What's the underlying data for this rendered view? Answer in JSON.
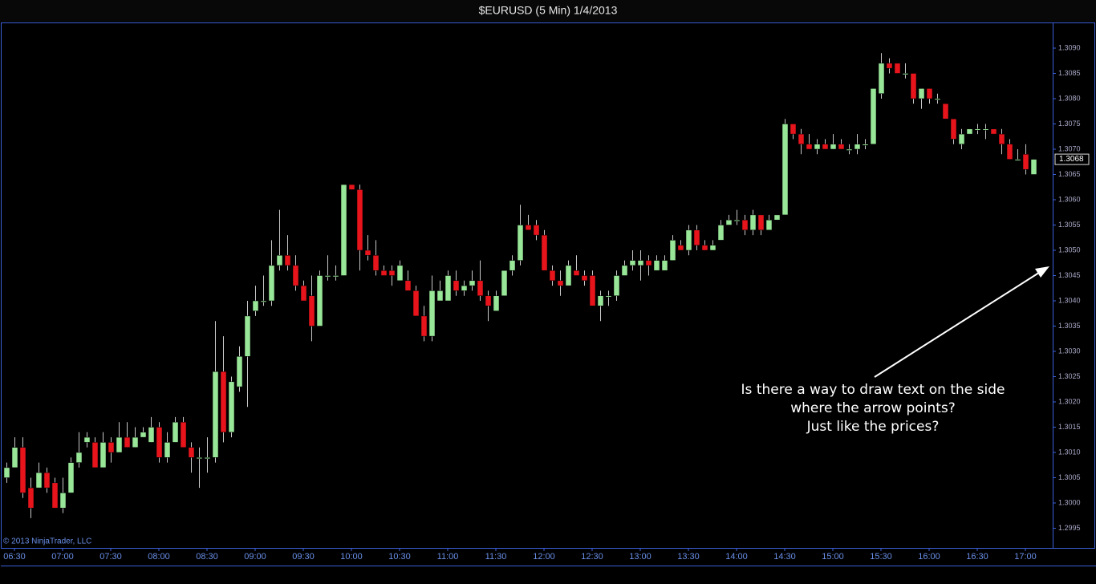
{
  "chart_data": {
    "type": "candlestick",
    "title": "$EURUSD (5 Min)  1/4/2013",
    "copyright": "© 2013 NinjaTrader, LLC",
    "annotation": [
      "Is there a way to draw text on the side",
      "where the arrow points?",
      "Just like the prices?"
    ],
    "up_color": "#98e698",
    "down_color": "#e8141c",
    "wick_color": "#c8c8c8",
    "last_price": 1.3068,
    "ylim": [
      1.299159,
      1.309476
    ],
    "yticks": [
      {
        "value": 1.2995,
        "label": "1.2995"
      },
      {
        "value": 1.3,
        "label": "1.3000"
      },
      {
        "value": 1.3005,
        "label": "1.3005"
      },
      {
        "value": 1.301,
        "label": "1.3010"
      },
      {
        "value": 1.3015,
        "label": "1.3015"
      },
      {
        "value": 1.302,
        "label": "1.3020"
      },
      {
        "value": 1.3025,
        "label": "1.3025"
      },
      {
        "value": 1.303,
        "label": "1.3030"
      },
      {
        "value": 1.3035,
        "label": "1.3035"
      },
      {
        "value": 1.304,
        "label": "1.3040"
      },
      {
        "value": 1.3045,
        "label": "1.3045"
      },
      {
        "value": 1.305,
        "label": "1.3050"
      },
      {
        "value": 1.3055,
        "label": "1.3055"
      },
      {
        "value": 1.306,
        "label": "1.3060"
      },
      {
        "value": 1.3065,
        "label": "1.3065"
      },
      {
        "value": 1.307,
        "label": "1.3070"
      },
      {
        "value": 1.3075,
        "label": "1.3075"
      },
      {
        "value": 1.308,
        "label": "1.3080"
      },
      {
        "value": 1.3085,
        "label": "1.3085"
      },
      {
        "value": 1.309,
        "label": "1.3090"
      }
    ],
    "x": [
      "06:25",
      "06:30",
      "06:35",
      "06:40",
      "06:45",
      "06:50",
      "06:55",
      "07:00",
      "07:05",
      "07:10",
      "07:15",
      "07:20",
      "07:25",
      "07:30",
      "07:35",
      "07:40",
      "07:45",
      "07:50",
      "07:55",
      "08:00",
      "08:05",
      "08:10",
      "08:15",
      "08:20",
      "08:25",
      "08:30",
      "08:35",
      "08:40",
      "08:45",
      "08:50",
      "08:55",
      "09:00",
      "09:05",
      "09:10",
      "09:15",
      "09:20",
      "09:25",
      "09:30",
      "09:35",
      "09:40",
      "09:45",
      "09:50",
      "09:55",
      "10:00",
      "10:05",
      "10:10",
      "10:15",
      "10:20",
      "10:25",
      "10:30",
      "10:35",
      "10:40",
      "10:45",
      "10:50",
      "10:55",
      "11:00",
      "11:05",
      "11:10",
      "11:15",
      "11:20",
      "11:25",
      "11:30",
      "11:35",
      "11:40",
      "11:45",
      "11:50",
      "11:55",
      "12:00",
      "12:05",
      "12:10",
      "12:15",
      "12:20",
      "12:25",
      "12:30",
      "12:35",
      "12:40",
      "12:45",
      "12:50",
      "12:55",
      "13:00",
      "13:05",
      "13:10",
      "13:15",
      "13:20",
      "13:25",
      "13:30",
      "13:35",
      "13:40",
      "13:45",
      "13:50",
      "13:55",
      "14:00",
      "14:05",
      "14:10",
      "14:15",
      "14:20",
      "14:25",
      "14:30",
      "14:35",
      "14:40",
      "14:45",
      "14:50",
      "14:55",
      "15:00",
      "15:05",
      "15:10",
      "15:15",
      "15:20",
      "15:25",
      "15:30",
      "15:35",
      "15:40",
      "15:45",
      "15:50",
      "15:55",
      "16:00",
      "16:05",
      "16:10",
      "16:15",
      "16:20",
      "16:25",
      "16:30",
      "16:35",
      "16:40",
      "16:45",
      "16:50",
      "16:55",
      "17:00",
      "17:05"
    ],
    "open": [
      1.3005,
      1.3007,
      1.3011,
      1.3003,
      1.3003,
      1.3006,
      1.3004,
      1.2999,
      1.3002,
      1.3008,
      1.3012,
      1.3012,
      1.3007,
      1.3012,
      1.301,
      1.3013,
      1.3011,
      1.3013,
      1.3012,
      1.3015,
      1.3009,
      1.3012,
      1.3016,
      1.3011,
      1.3009,
      1.3009,
      1.3009,
      1.3026,
      1.3014,
      1.3023,
      1.3029,
      1.3038,
      1.304,
      1.304,
      1.3047,
      1.3049,
      1.3047,
      1.3043,
      1.3041,
      1.3035,
      1.3045,
      1.3045,
      1.3045,
      1.3063,
      1.3062,
      1.305,
      1.3049,
      1.3046,
      1.3046,
      1.3044,
      1.3044,
      1.3042,
      1.3037,
      1.3033,
      1.304,
      1.304,
      1.3044,
      1.3042,
      1.3043,
      1.3044,
      1.3041,
      1.3038,
      1.3041,
      1.3046,
      1.3048,
      1.3055,
      1.3055,
      1.3053,
      1.3046,
      1.3044,
      1.3043,
      1.3046,
      1.3045,
      1.3045,
      1.3039,
      1.3041,
      1.3041,
      1.3045,
      1.3047,
      1.3047,
      1.3048,
      1.3046,
      1.3046,
      1.3048,
      1.3051,
      1.305,
      1.3054,
      1.3051,
      1.305,
      1.3052,
      1.3055,
      1.3056,
      1.3056,
      1.3054,
      1.3057,
      1.3054,
      1.3056,
      1.3057,
      1.3075,
      1.3073,
      1.3071,
      1.307,
      1.3071,
      1.307,
      1.3071,
      1.307,
      1.307,
      1.3071,
      1.3071,
      1.3081,
      1.3087,
      1.3087,
      1.3085,
      1.3085,
      1.308,
      1.3082,
      1.308,
      1.3079,
      1.3076,
      1.3071,
      1.3073,
      1.3074,
      1.3074,
      1.3074,
      1.3073,
      1.3071,
      1.3068,
      1.3069,
      1.3065
    ],
    "high": [
      1.3008,
      1.3013,
      1.3013,
      1.3005,
      1.3008,
      1.3007,
      1.3005,
      1.3005,
      1.3009,
      1.3014,
      1.3014,
      1.3013,
      1.3014,
      1.3013,
      1.3016,
      1.3016,
      1.3015,
      1.3015,
      1.3017,
      1.3016,
      1.3014,
      1.3017,
      1.3017,
      1.3012,
      1.3011,
      1.3013,
      1.3036,
      1.3033,
      1.3025,
      1.3031,
      1.304,
      1.3043,
      1.3045,
      1.3052,
      1.3058,
      1.3053,
      1.3049,
      1.3044,
      1.3045,
      1.3046,
      1.3049,
      1.3047,
      1.3063,
      1.3063,
      1.3063,
      1.3053,
      1.3052,
      1.3047,
      1.3047,
      1.3048,
      1.3046,
      1.3043,
      1.3039,
      1.3045,
      1.3044,
      1.3046,
      1.3046,
      1.3044,
      1.3046,
      1.3048,
      1.3042,
      1.3042,
      1.3046,
      1.3049,
      1.3059,
      1.3057,
      1.3056,
      1.3054,
      1.3047,
      1.3046,
      1.3048,
      1.3049,
      1.3046,
      1.3046,
      1.3042,
      1.3042,
      1.3046,
      1.3048,
      1.305,
      1.305,
      1.3049,
      1.3049,
      1.3049,
      1.3053,
      1.3052,
      1.3055,
      1.3055,
      1.3052,
      1.3052,
      1.3056,
      1.3057,
      1.3058,
      1.3057,
      1.3058,
      1.3057,
      1.3057,
      1.3057,
      1.3076,
      1.3075,
      1.3074,
      1.3073,
      1.3072,
      1.3072,
      1.3073,
      1.3072,
      1.3071,
      1.3073,
      1.3072,
      1.3082,
      1.3089,
      1.3088,
      1.3087,
      1.3087,
      1.3085,
      1.3082,
      1.3082,
      1.3081,
      1.3079,
      1.3076,
      1.3074,
      1.3074,
      1.3075,
      1.3075,
      1.3074,
      1.3074,
      1.3072,
      1.307,
      1.3071,
      1.3068
    ],
    "low": [
      1.3004,
      1.3007,
      1.3001,
      1.2997,
      1.3003,
      1.3002,
      1.2999,
      1.2998,
      1.3002,
      1.3007,
      1.3011,
      1.3007,
      1.3007,
      1.3008,
      1.301,
      1.3011,
      1.3011,
      1.3013,
      1.3012,
      1.3008,
      1.3008,
      1.3012,
      1.3011,
      1.3006,
      1.3003,
      1.3006,
      1.3008,
      1.3012,
      1.3013,
      1.3022,
      1.3019,
      1.3037,
      1.3039,
      1.3039,
      1.3046,
      1.3046,
      1.3042,
      1.304,
      1.3032,
      1.3035,
      1.3044,
      1.3044,
      1.3045,
      1.3062,
      1.3046,
      1.3048,
      1.3045,
      1.3045,
      1.3043,
      1.3044,
      1.3042,
      1.3037,
      1.3032,
      1.3032,
      1.304,
      1.304,
      1.3041,
      1.3041,
      1.3042,
      1.304,
      1.3036,
      1.3038,
      1.3041,
      1.3045,
      1.3047,
      1.3054,
      1.3052,
      1.3046,
      1.3043,
      1.3041,
      1.3043,
      1.3045,
      1.3043,
      1.3039,
      1.3036,
      1.3039,
      1.304,
      1.3045,
      1.3046,
      1.3044,
      1.3045,
      1.3046,
      1.3046,
      1.3048,
      1.305,
      1.3049,
      1.305,
      1.305,
      1.305,
      1.3052,
      1.3055,
      1.3055,
      1.3053,
      1.3053,
      1.3053,
      1.3054,
      1.3056,
      1.3057,
      1.3072,
      1.3069,
      1.307,
      1.3069,
      1.307,
      1.307,
      1.307,
      1.3069,
      1.3069,
      1.307,
      1.3071,
      1.308,
      1.3085,
      1.3085,
      1.3084,
      1.3079,
      1.3078,
      1.3079,
      1.3079,
      1.3076,
      1.3071,
      1.307,
      1.3073,
      1.3073,
      1.3072,
      1.3073,
      1.3069,
      1.3068,
      1.3068,
      1.3065,
      1.3065
    ],
    "close": [
      1.3007,
      1.3011,
      1.3002,
      1.2999,
      1.3006,
      1.3003,
      1.2999,
      1.3002,
      1.3008,
      1.301,
      1.3013,
      1.3007,
      1.3012,
      1.301,
      1.3013,
      1.3011,
      1.3013,
      1.3014,
      1.3015,
      1.3009,
      1.3012,
      1.3016,
      1.3011,
      1.3009,
      1.3009,
      1.3009,
      1.3026,
      1.3014,
      1.3024,
      1.3029,
      1.3037,
      1.304,
      1.304,
      1.3047,
      1.3049,
      1.3047,
      1.3043,
      1.304,
      1.3035,
      1.3045,
      1.3045,
      1.3045,
      1.3063,
      1.3062,
      1.305,
      1.3049,
      1.3046,
      1.3045,
      1.3045,
      1.3047,
      1.3042,
      1.3037,
      1.3033,
      1.3042,
      1.3042,
      1.3045,
      1.3042,
      1.3043,
      1.3044,
      1.3041,
      1.3039,
      1.3041,
      1.3046,
      1.3048,
      1.3055,
      1.3054,
      1.3053,
      1.3046,
      1.3044,
      1.3043,
      1.3047,
      1.3045,
      1.3044,
      1.3039,
      1.3041,
      1.3041,
      1.3045,
      1.3047,
      1.3048,
      1.3048,
      1.3047,
      1.3048,
      1.3048,
      1.3052,
      1.305,
      1.3054,
      1.3051,
      1.305,
      1.3051,
      1.3055,
      1.3056,
      1.3056,
      1.3054,
      1.3057,
      1.3054,
      1.3056,
      1.3057,
      1.3075,
      1.3073,
      1.3071,
      1.307,
      1.3071,
      1.307,
      1.3071,
      1.307,
      1.307,
      1.3071,
      1.3071,
      1.3082,
      1.3087,
      1.3086,
      1.3085,
      1.3085,
      1.308,
      1.3082,
      1.308,
      1.308,
      1.3076,
      1.3072,
      1.3073,
      1.3074,
      1.3074,
      1.3074,
      1.3073,
      1.3071,
      1.3068,
      1.3068,
      1.3066,
      1.3068
    ]
  }
}
